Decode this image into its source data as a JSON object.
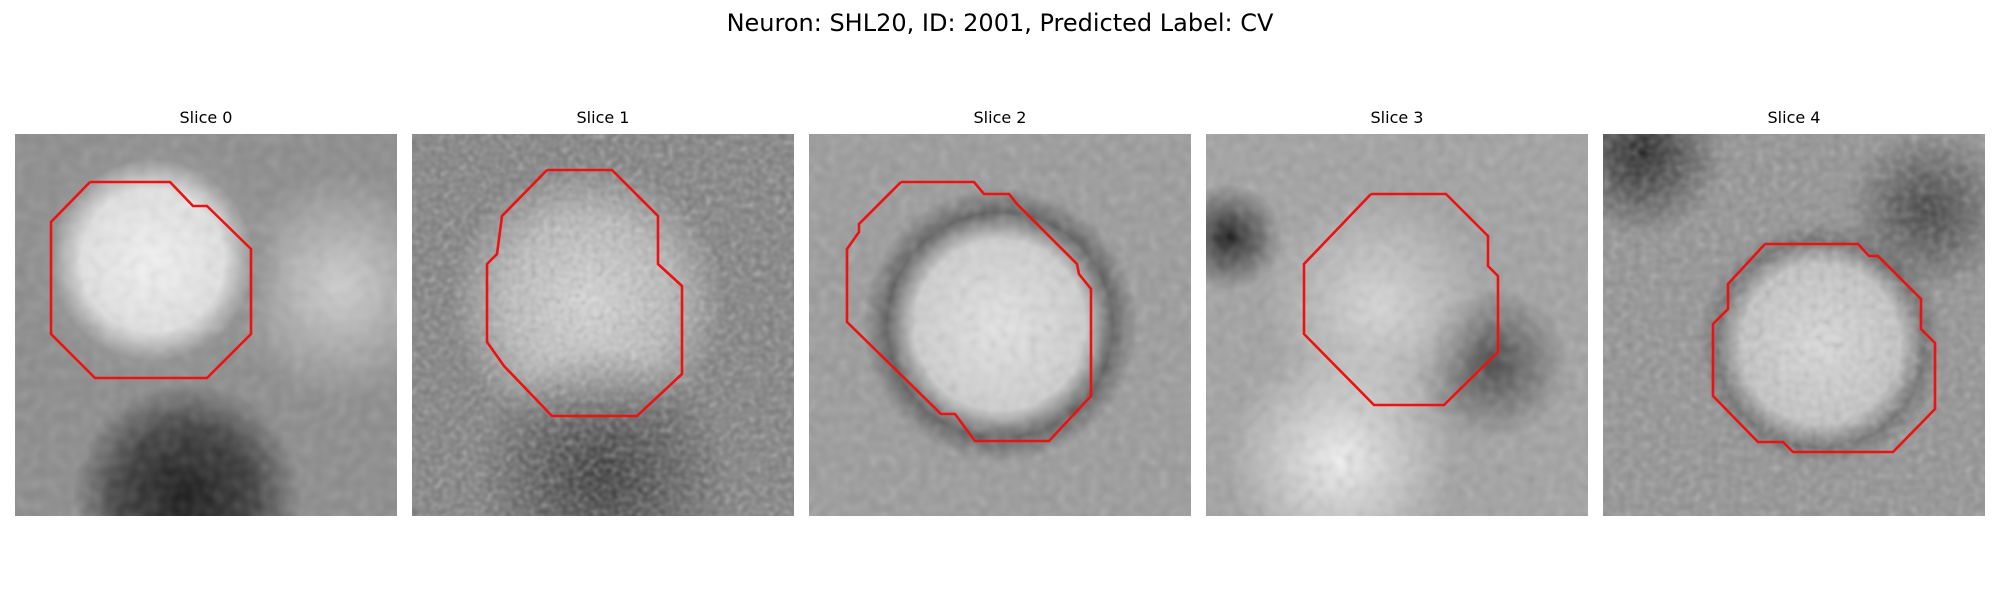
{
  "figure": {
    "title": "Neuron: SHL20, ID: 2001, Predicted Label: CV"
  },
  "colors": {
    "contour": "#ee1111",
    "background": "#ffffff"
  },
  "slices": [
    {
      "label": "Slice 0"
    },
    {
      "label": "Slice 1"
    },
    {
      "label": "Slice 2"
    },
    {
      "label": "Slice 3"
    },
    {
      "label": "Slice 4"
    }
  ]
}
